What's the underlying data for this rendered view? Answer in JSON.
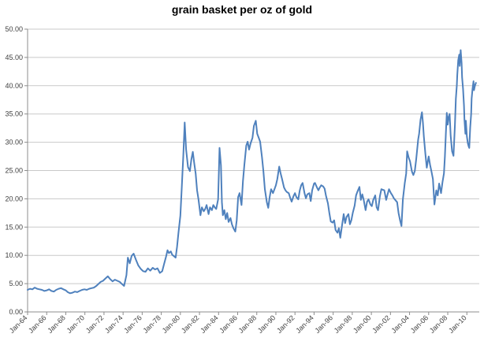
{
  "chart_data": {
    "type": "line",
    "title": "grain basket per oz of gold",
    "grid": "horizontal",
    "legend": "none",
    "colors": {
      "line": "#4f81bd",
      "gridline": "#c9c9c9",
      "axis": "#8c8c8c",
      "tick": "#8c8c8c",
      "label": "#404040",
      "background": "#ffffff"
    },
    "y_axis": {
      "min": 0,
      "max": 50,
      "step": 5,
      "tick_labels": [
        "0.00",
        "5.00",
        "10.00",
        "15.00",
        "20.00",
        "25.00",
        "30.00",
        "35.00",
        "40.00",
        "45.00",
        "50.00"
      ]
    },
    "x_axis": {
      "min": 1964.0,
      "max": 2011.3,
      "tick_years": [
        1964,
        1966,
        1968,
        1970,
        1972,
        1974,
        1976,
        1978,
        1980,
        1982,
        1984,
        1986,
        1988,
        1990,
        1992,
        1994,
        1996,
        1998,
        2000,
        2002,
        2004,
        2006,
        2008,
        2010
      ],
      "tick_labels": [
        "Jan-64",
        "Jan-66",
        "Jan-68",
        "Jan-70",
        "Jan-72",
        "Jan-74",
        "Jan-76",
        "Jan-78",
        "Jan-80",
        "Jan-82",
        "Jan-84",
        "Jan-86",
        "Jan-88",
        "Jan-90",
        "Jan-92",
        "Jan-94",
        "Jan-96",
        "Jan-98",
        "Jan-00",
        "Jan-02",
        "Jan-04",
        "Jan-06",
        "Jan-08",
        "Jan-10"
      ]
    },
    "series": [
      {
        "name": "grain basket per oz of gold",
        "points": [
          [
            1964.0,
            3.9
          ],
          [
            1964.25,
            4.1
          ],
          [
            1964.5,
            4.0
          ],
          [
            1964.75,
            4.3
          ],
          [
            1965.0,
            4.1
          ],
          [
            1965.25,
            4.0
          ],
          [
            1965.5,
            3.9
          ],
          [
            1965.75,
            3.7
          ],
          [
            1966.0,
            3.8
          ],
          [
            1966.25,
            4.0
          ],
          [
            1966.5,
            3.7
          ],
          [
            1966.75,
            3.6
          ],
          [
            1967.0,
            3.9
          ],
          [
            1967.25,
            4.1
          ],
          [
            1967.5,
            4.2
          ],
          [
            1967.75,
            4.0
          ],
          [
            1968.0,
            3.8
          ],
          [
            1968.2,
            3.5
          ],
          [
            1968.45,
            3.3
          ],
          [
            1968.7,
            3.4
          ],
          [
            1968.95,
            3.6
          ],
          [
            1969.2,
            3.5
          ],
          [
            1969.45,
            3.7
          ],
          [
            1969.7,
            3.9
          ],
          [
            1969.95,
            4.0
          ],
          [
            1970.2,
            3.9
          ],
          [
            1970.45,
            4.1
          ],
          [
            1970.7,
            4.2
          ],
          [
            1970.95,
            4.3
          ],
          [
            1971.2,
            4.6
          ],
          [
            1971.45,
            5.0
          ],
          [
            1971.65,
            5.3
          ],
          [
            1971.9,
            5.5
          ],
          [
            1972.15,
            5.9
          ],
          [
            1972.4,
            6.3
          ],
          [
            1972.65,
            5.8
          ],
          [
            1972.9,
            5.4
          ],
          [
            1973.15,
            5.7
          ],
          [
            1973.4,
            5.5
          ],
          [
            1973.65,
            5.3
          ],
          [
            1973.9,
            4.9
          ],
          [
            1974.1,
            4.6
          ],
          [
            1974.35,
            6.5
          ],
          [
            1974.5,
            9.6
          ],
          [
            1974.7,
            8.6
          ],
          [
            1974.9,
            9.9
          ],
          [
            1975.1,
            10.3
          ],
          [
            1975.35,
            9.2
          ],
          [
            1975.6,
            8.2
          ],
          [
            1975.85,
            7.6
          ],
          [
            1976.1,
            7.2
          ],
          [
            1976.35,
            7.1
          ],
          [
            1976.6,
            7.7
          ],
          [
            1976.85,
            7.3
          ],
          [
            1977.1,
            7.8
          ],
          [
            1977.35,
            7.5
          ],
          [
            1977.6,
            7.7
          ],
          [
            1977.85,
            6.9
          ],
          [
            1978.1,
            7.2
          ],
          [
            1978.3,
            8.5
          ],
          [
            1978.5,
            9.8
          ],
          [
            1978.65,
            10.9
          ],
          [
            1978.8,
            10.4
          ],
          [
            1979.0,
            10.7
          ],
          [
            1979.15,
            10.1
          ],
          [
            1979.3,
            9.9
          ],
          [
            1979.5,
            9.6
          ],
          [
            1979.65,
            11.5
          ],
          [
            1979.8,
            14.0
          ],
          [
            1980.0,
            17.0
          ],
          [
            1980.15,
            22.0
          ],
          [
            1980.3,
            27.5
          ],
          [
            1980.45,
            33.5
          ],
          [
            1980.6,
            28.7
          ],
          [
            1980.8,
            25.6
          ],
          [
            1981.0,
            24.9
          ],
          [
            1981.15,
            27.0
          ],
          [
            1981.3,
            28.3
          ],
          [
            1981.45,
            26.3
          ],
          [
            1981.6,
            24.5
          ],
          [
            1981.75,
            21.5
          ],
          [
            1981.9,
            19.9
          ],
          [
            1982.1,
            17.1
          ],
          [
            1982.25,
            18.5
          ],
          [
            1982.45,
            17.8
          ],
          [
            1982.6,
            18.2
          ],
          [
            1982.75,
            18.9
          ],
          [
            1982.95,
            17.3
          ],
          [
            1983.1,
            18.5
          ],
          [
            1983.3,
            18.0
          ],
          [
            1983.45,
            18.9
          ],
          [
            1983.6,
            18.5
          ],
          [
            1983.75,
            18.2
          ],
          [
            1983.95,
            19.9
          ],
          [
            1984.1,
            29.0
          ],
          [
            1984.25,
            25.9
          ],
          [
            1984.35,
            19.4
          ],
          [
            1984.45,
            17.1
          ],
          [
            1984.6,
            18.0
          ],
          [
            1984.75,
            16.4
          ],
          [
            1984.9,
            17.5
          ],
          [
            1985.05,
            15.9
          ],
          [
            1985.25,
            16.6
          ],
          [
            1985.4,
            15.5
          ],
          [
            1985.55,
            14.8
          ],
          [
            1985.75,
            14.2
          ],
          [
            1985.9,
            16.2
          ],
          [
            1986.05,
            20.3
          ],
          [
            1986.2,
            21.0
          ],
          [
            1986.4,
            18.9
          ],
          [
            1986.55,
            23.1
          ],
          [
            1986.7,
            26.0
          ],
          [
            1986.9,
            29.4
          ],
          [
            1987.05,
            30.1
          ],
          [
            1987.2,
            28.7
          ],
          [
            1987.35,
            29.8
          ],
          [
            1987.55,
            30.8
          ],
          [
            1987.7,
            32.9
          ],
          [
            1987.9,
            33.8
          ],
          [
            1988.05,
            31.5
          ],
          [
            1988.2,
            30.8
          ],
          [
            1988.35,
            30.1
          ],
          [
            1988.55,
            27.3
          ],
          [
            1988.7,
            24.8
          ],
          [
            1988.85,
            21.7
          ],
          [
            1989.05,
            19.4
          ],
          [
            1989.2,
            18.4
          ],
          [
            1989.35,
            20.3
          ],
          [
            1989.5,
            21.7
          ],
          [
            1989.7,
            21.0
          ],
          [
            1989.85,
            21.7
          ],
          [
            1990.0,
            22.4
          ],
          [
            1990.15,
            23.5
          ],
          [
            1990.35,
            25.7
          ],
          [
            1990.5,
            24.5
          ],
          [
            1990.65,
            23.5
          ],
          [
            1990.85,
            22.0
          ],
          [
            1991.0,
            21.5
          ],
          [
            1991.15,
            21.2
          ],
          [
            1991.35,
            21.0
          ],
          [
            1991.5,
            20.2
          ],
          [
            1991.65,
            19.5
          ],
          [
            1991.85,
            20.5
          ],
          [
            1992.0,
            21.0
          ],
          [
            1992.15,
            20.3
          ],
          [
            1992.35,
            19.9
          ],
          [
            1992.5,
            21.5
          ],
          [
            1992.65,
            22.4
          ],
          [
            1992.8,
            22.8
          ],
          [
            1993.0,
            21.0
          ],
          [
            1993.15,
            20.1
          ],
          [
            1993.3,
            20.8
          ],
          [
            1993.5,
            21.0
          ],
          [
            1993.65,
            19.6
          ],
          [
            1993.8,
            21.5
          ],
          [
            1994.0,
            22.7
          ],
          [
            1994.1,
            22.8
          ],
          [
            1994.3,
            22.0
          ],
          [
            1994.45,
            21.5
          ],
          [
            1994.6,
            22.0
          ],
          [
            1994.75,
            22.4
          ],
          [
            1994.95,
            22.2
          ],
          [
            1995.1,
            21.8
          ],
          [
            1995.25,
            20.5
          ],
          [
            1995.45,
            19.2
          ],
          [
            1995.6,
            17.5
          ],
          [
            1995.75,
            16.0
          ],
          [
            1995.95,
            15.8
          ],
          [
            1996.1,
            16.2
          ],
          [
            1996.25,
            14.5
          ],
          [
            1996.45,
            14.0
          ],
          [
            1996.6,
            14.8
          ],
          [
            1996.75,
            13.1
          ],
          [
            1996.9,
            15.0
          ],
          [
            1997.1,
            17.3
          ],
          [
            1997.25,
            15.7
          ],
          [
            1997.4,
            16.8
          ],
          [
            1997.6,
            17.3
          ],
          [
            1997.75,
            15.5
          ],
          [
            1997.9,
            16.2
          ],
          [
            1998.05,
            17.5
          ],
          [
            1998.25,
            18.8
          ],
          [
            1998.4,
            20.6
          ],
          [
            1998.55,
            21.3
          ],
          [
            1998.75,
            22.1
          ],
          [
            1998.9,
            19.8
          ],
          [
            1999.05,
            20.8
          ],
          [
            1999.2,
            19.8
          ],
          [
            1999.4,
            18.0
          ],
          [
            1999.55,
            19.5
          ],
          [
            1999.7,
            19.9
          ],
          [
            1999.9,
            19.0
          ],
          [
            2000.05,
            18.7
          ],
          [
            2000.2,
            19.8
          ],
          [
            2000.4,
            20.6
          ],
          [
            2000.55,
            18.5
          ],
          [
            2000.7,
            18.0
          ],
          [
            2000.9,
            20.5
          ],
          [
            2001.05,
            21.7
          ],
          [
            2001.2,
            21.6
          ],
          [
            2001.35,
            21.5
          ],
          [
            2001.55,
            19.8
          ],
          [
            2001.7,
            20.8
          ],
          [
            2001.85,
            21.7
          ],
          [
            2002.05,
            21.0
          ],
          [
            2002.2,
            20.6
          ],
          [
            2002.35,
            20.1
          ],
          [
            2002.5,
            19.8
          ],
          [
            2002.7,
            19.4
          ],
          [
            2002.85,
            17.5
          ],
          [
            2003.0,
            16.2
          ],
          [
            2003.15,
            15.2
          ],
          [
            2003.3,
            19.9
          ],
          [
            2003.5,
            22.8
          ],
          [
            2003.65,
            24.5
          ],
          [
            2003.75,
            28.4
          ],
          [
            2003.9,
            27.3
          ],
          [
            2004.05,
            26.6
          ],
          [
            2004.25,
            24.8
          ],
          [
            2004.4,
            24.2
          ],
          [
            2004.55,
            24.9
          ],
          [
            2004.7,
            27.0
          ],
          [
            2004.9,
            30.5
          ],
          [
            2005.0,
            31.5
          ],
          [
            2005.15,
            34.0
          ],
          [
            2005.3,
            35.3
          ],
          [
            2005.4,
            33.5
          ],
          [
            2005.5,
            31.0
          ],
          [
            2005.65,
            28.0
          ],
          [
            2005.8,
            25.5
          ],
          [
            2006.0,
            27.5
          ],
          [
            2006.15,
            26.0
          ],
          [
            2006.3,
            24.8
          ],
          [
            2006.45,
            23.5
          ],
          [
            2006.6,
            19.0
          ],
          [
            2006.8,
            21.5
          ],
          [
            2006.95,
            20.6
          ],
          [
            2007.1,
            22.7
          ],
          [
            2007.3,
            21.0
          ],
          [
            2007.45,
            23.0
          ],
          [
            2007.6,
            24.5
          ],
          [
            2007.7,
            27.5
          ],
          [
            2007.8,
            31.5
          ],
          [
            2007.9,
            35.2
          ],
          [
            2008.0,
            33.1
          ],
          [
            2008.1,
            34.5
          ],
          [
            2008.2,
            35.0
          ],
          [
            2008.3,
            31.2
          ],
          [
            2008.45,
            28.4
          ],
          [
            2008.6,
            27.6
          ],
          [
            2008.75,
            33.0
          ],
          [
            2008.85,
            37.7
          ],
          [
            2008.95,
            40.0
          ],
          [
            2009.0,
            41.9
          ],
          [
            2009.1,
            44.5
          ],
          [
            2009.2,
            45.5
          ],
          [
            2009.25,
            43.5
          ],
          [
            2009.35,
            46.3
          ],
          [
            2009.45,
            44.0
          ],
          [
            2009.5,
            41.5
          ],
          [
            2009.6,
            39.5
          ],
          [
            2009.7,
            36.5
          ],
          [
            2009.75,
            34.0
          ],
          [
            2009.85,
            31.5
          ],
          [
            2009.9,
            33.8
          ],
          [
            2010.0,
            31.0
          ],
          [
            2010.1,
            29.8
          ],
          [
            2010.2,
            29.2
          ],
          [
            2010.25,
            29.0
          ],
          [
            2010.35,
            32.6
          ],
          [
            2010.45,
            35.0
          ],
          [
            2010.5,
            37.7
          ],
          [
            2010.6,
            39.5
          ],
          [
            2010.7,
            40.8
          ],
          [
            2010.75,
            39.2
          ],
          [
            2010.85,
            40.0
          ],
          [
            2010.95,
            40.5
          ]
        ]
      }
    ]
  }
}
